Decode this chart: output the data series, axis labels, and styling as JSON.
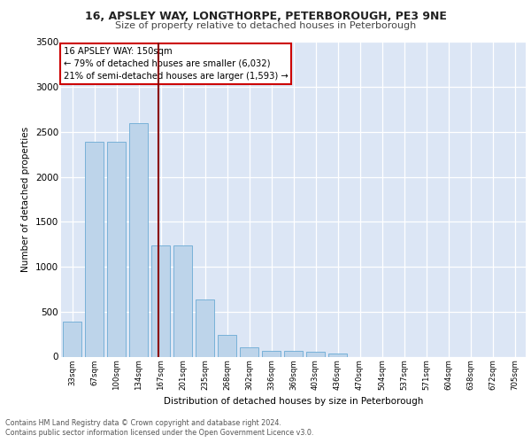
{
  "title_line1": "16, APSLEY WAY, LONGTHORPE, PETERBOROUGH, PE3 9NE",
  "title_line2": "Size of property relative to detached houses in Peterborough",
  "xlabel": "Distribution of detached houses by size in Peterborough",
  "ylabel": "Number of detached properties",
  "categories": [
    "33sqm",
    "67sqm",
    "100sqm",
    "134sqm",
    "167sqm",
    "201sqm",
    "235sqm",
    "268sqm",
    "302sqm",
    "336sqm",
    "369sqm",
    "403sqm",
    "436sqm",
    "470sqm",
    "504sqm",
    "537sqm",
    "571sqm",
    "604sqm",
    "638sqm",
    "672sqm",
    "705sqm"
  ],
  "values": [
    390,
    2390,
    2390,
    2600,
    1240,
    1240,
    640,
    245,
    105,
    65,
    60,
    55,
    30,
    0,
    0,
    0,
    0,
    0,
    0,
    0,
    0
  ],
  "bar_color": "#bdd4ea",
  "bar_edge_color": "#6aaad4",
  "vline_color": "#8b0000",
  "annotation_text": "16 APSLEY WAY: 150sqm\n← 79% of detached houses are smaller (6,032)\n21% of semi-detached houses are larger (1,593) →",
  "annotation_box_color": "#ffffff",
  "annotation_box_edge": "#cc0000",
  "ylim": [
    0,
    3500
  ],
  "yticks": [
    0,
    500,
    1000,
    1500,
    2000,
    2500,
    3000,
    3500
  ],
  "plot_bg_color": "#dce6f5",
  "footer_line1": "Contains HM Land Registry data © Crown copyright and database right 2024.",
  "footer_line2": "Contains public sector information licensed under the Open Government Licence v3.0."
}
